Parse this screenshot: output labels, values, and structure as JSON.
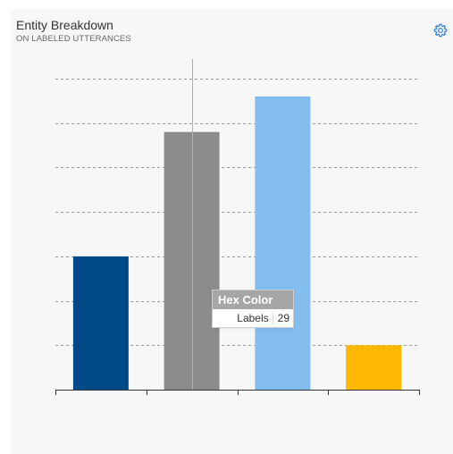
{
  "header": {
    "title": "Entity Breakdown",
    "subtitle": "ON LABELED UTTERANCES",
    "settings_icon": "gear-icon"
  },
  "colors": {
    "card_background": "#f7f7f7",
    "gridline": "#9a9a9a",
    "axis": "#333333",
    "hover_line": "#b0b0b0"
  },
  "tooltip": {
    "title": "Hex Color",
    "key": "Labels",
    "value": "29"
  },
  "chart_data": {
    "type": "bar",
    "title": "Entity Breakdown",
    "subtitle": "ON LABELED UTTERANCES",
    "categories": [
      "",
      "Hex Color",
      "",
      ""
    ],
    "values": [
      15,
      29,
      33,
      5
    ],
    "colors": [
      "#004b87",
      "#8c8c8c",
      "#83bdee",
      "#ffb900"
    ],
    "ylim": [
      0,
      35
    ],
    "grid_step": 5,
    "grid": true,
    "grid_style": "dashed",
    "xlabel": "",
    "ylabel": "",
    "legend": "none",
    "hovered_index": 1
  }
}
